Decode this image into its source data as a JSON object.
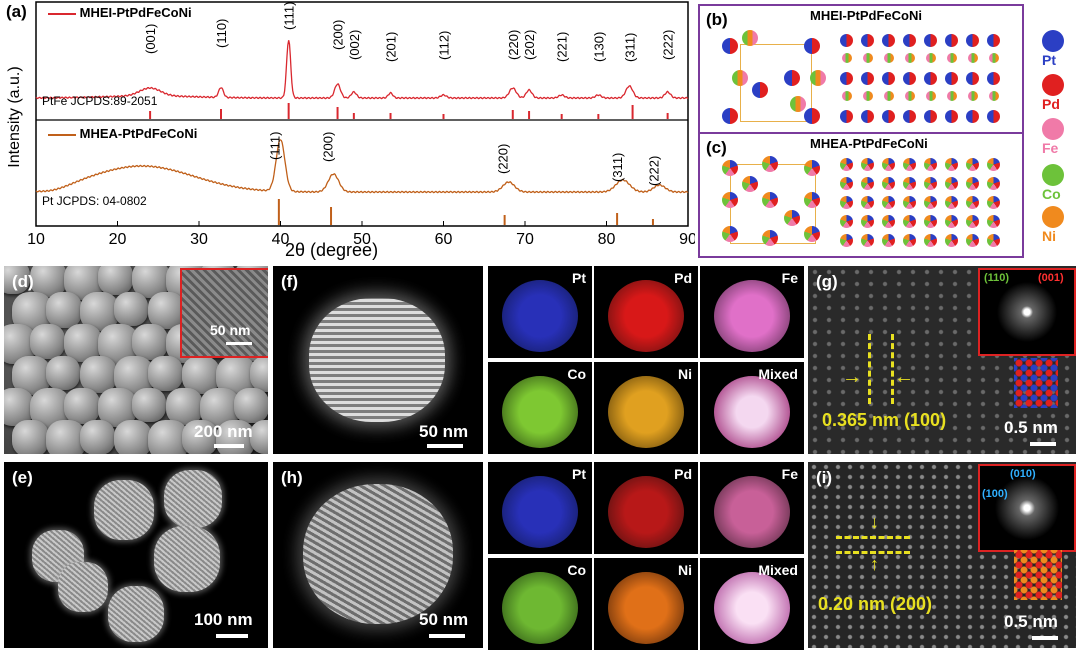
{
  "panel_a": {
    "label": "(a)",
    "ylabel": "Intensity (a.u.)",
    "xlabel": "2θ (degree)",
    "x_ticks": [
      "10",
      "20",
      "30",
      "40",
      "50",
      "60",
      "70",
      "80",
      "90"
    ],
    "top_legend": "MHEI-PtPdFeCoNi",
    "top_ref": "PtFe JCPDS:89-2051",
    "top_peaks": [
      "(001)",
      "(110)",
      "(111)",
      "(200)",
      "(002)",
      "(201)",
      "(112)",
      "(220)",
      "(202)",
      "(221)",
      "(130)",
      "(311)",
      "(222)"
    ],
    "bottom_legend": "MHEA-PtPdFeCoNi",
    "bottom_ref": "Pt  JCPDS: 04-0802",
    "bottom_peaks": [
      "(111)",
      "(200)",
      "(220)",
      "(311)",
      "(222)"
    ],
    "top_color": "#d9282f",
    "bottom_color": "#c0601a"
  },
  "chart_data": {
    "type": "line",
    "title": "",
    "xlabel": "2θ (degree)",
    "ylabel": "Intensity (a.u.)",
    "xlim": [
      10,
      90
    ],
    "series": [
      {
        "name": "MHEI-PtPdFeCoNi",
        "peaks_2theta": [
          24,
          32.7,
          41,
          47,
          49,
          53.5,
          60,
          68.5,
          70.5,
          74.5,
          79,
          82.8,
          87.5
        ]
      },
      {
        "name": "MHEA-PtPdFeCoNi",
        "peaks_2theta": [
          40,
          46.5,
          68,
          82,
          86.5
        ]
      }
    ],
    "references": [
      {
        "name": "PtFe JCPDS:89-2051",
        "positions": [
          24,
          32.7,
          41,
          47,
          49,
          53.5,
          60,
          68.5,
          70.5,
          74.5,
          79,
          83.2,
          87.5
        ]
      },
      {
        "name": "Pt JCPDS: 04-0802",
        "positions": [
          39.8,
          46.2,
          67.5,
          81.3,
          85.7
        ]
      }
    ]
  },
  "panel_b": {
    "label": "(b)",
    "title": "MHEI-PtPdFeCoNi"
  },
  "panel_c": {
    "label": "(c)",
    "title": "MHEA-PtPdFeCoNi"
  },
  "legend": [
    {
      "name": "Pt",
      "color": "#2b3fc4"
    },
    {
      "name": "Pd",
      "color": "#e02020"
    },
    {
      "name": "Fe",
      "color": "#f07aa8"
    },
    {
      "name": "Co",
      "color": "#6dc23a"
    },
    {
      "name": "Ni",
      "color": "#f08a1e"
    }
  ],
  "panel_d": {
    "label": "(d)",
    "scale": "200 nm",
    "inset_scale": "50 nm"
  },
  "panel_e": {
    "label": "(e)",
    "scale": "100 nm"
  },
  "panel_f": {
    "label": "(f)",
    "scale": "50 nm"
  },
  "panel_h": {
    "label": "(h)",
    "scale": "50 nm"
  },
  "maps_f": [
    {
      "name": "Pt",
      "color": "#2830b8"
    },
    {
      "name": "Pd",
      "color": "#c81818"
    },
    {
      "name": "Fe",
      "color": "#d660b8"
    },
    {
      "name": "Co",
      "color": "#7ec832"
    },
    {
      "name": "Ni",
      "color": "#e0a020"
    },
    {
      "name": "Mixed",
      "color": "#e8c0e8"
    }
  ],
  "maps_h": [
    {
      "name": "Pt",
      "color": "#2830b8"
    },
    {
      "name": "Pd",
      "color": "#b81818"
    },
    {
      "name": "Fe",
      "color": "#c86098"
    },
    {
      "name": "Co",
      "color": "#6eb832"
    },
    {
      "name": "Ni",
      "color": "#e07018"
    },
    {
      "name": "Mixed",
      "color": "#f0c8e8"
    }
  ],
  "panel_g": {
    "label": "(g)",
    "spacing": "0.365 nm (100)",
    "scale": "0.5 nm",
    "fft_a": "(110)",
    "fft_b": "(001)"
  },
  "panel_i": {
    "label": "(i)",
    "spacing": "0.20 nm (200)",
    "scale": "0.5 nm",
    "fft_a": "(010)",
    "fft_b": "(100)"
  }
}
